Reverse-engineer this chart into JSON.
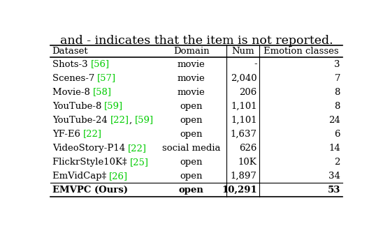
{
  "title": "and - indicates that the item is not reported.",
  "title_fontsize": 12.5,
  "col_headers": [
    "Dataset",
    "Domain",
    "Num",
    "Emotion classes"
  ],
  "rows": [
    [
      "movie",
      "-",
      "3"
    ],
    [
      "movie",
      "2,040",
      "7"
    ],
    [
      "movie",
      "206",
      "8"
    ],
    [
      "open",
      "1,101",
      "8"
    ],
    [
      "open",
      "1,101",
      "24"
    ],
    [
      "open",
      "1,637",
      "6"
    ],
    [
      "social media",
      "626",
      "14"
    ],
    [
      "open",
      "10K",
      "2"
    ],
    [
      "open",
      "1,897",
      "34"
    ],
    [
      "open",
      "10,291",
      "53"
    ]
  ],
  "dataset_parts": [
    [
      [
        "Shots-3 ",
        "black"
      ],
      [
        "[56]",
        "#00cc00"
      ]
    ],
    [
      [
        "Scenes-7 ",
        "black"
      ],
      [
        "[57]",
        "#00cc00"
      ]
    ],
    [
      [
        "Movie-8 ",
        "black"
      ],
      [
        "[58]",
        "#00cc00"
      ]
    ],
    [
      [
        "YouTube-8 ",
        "black"
      ],
      [
        "[59]",
        "#00cc00"
      ]
    ],
    [
      [
        "YouTube-24 ",
        "black"
      ],
      [
        "[22]",
        "#00cc00"
      ],
      [
        ", ",
        "black"
      ],
      [
        "[59]",
        "#00cc00"
      ]
    ],
    [
      [
        "YF-E6 ",
        "black"
      ],
      [
        "[22]",
        "#00cc00"
      ]
    ],
    [
      [
        "VideoStory-P14 ",
        "black"
      ],
      [
        "[22]",
        "#00cc00"
      ]
    ],
    [
      [
        "FlickrStyle10K‡ ",
        "black"
      ],
      [
        "[25]",
        "#00cc00"
      ]
    ],
    [
      [
        "EmVidCap‡ ",
        "black"
      ],
      [
        "[26]",
        "#00cc00"
      ]
    ],
    [
      [
        "EMVPC (Ours)",
        "black"
      ]
    ]
  ],
  "last_row_bold": true,
  "background_color": "#ffffff",
  "font_size": 9.5,
  "header_font_size": 9.5,
  "green_color": "#00cc00"
}
